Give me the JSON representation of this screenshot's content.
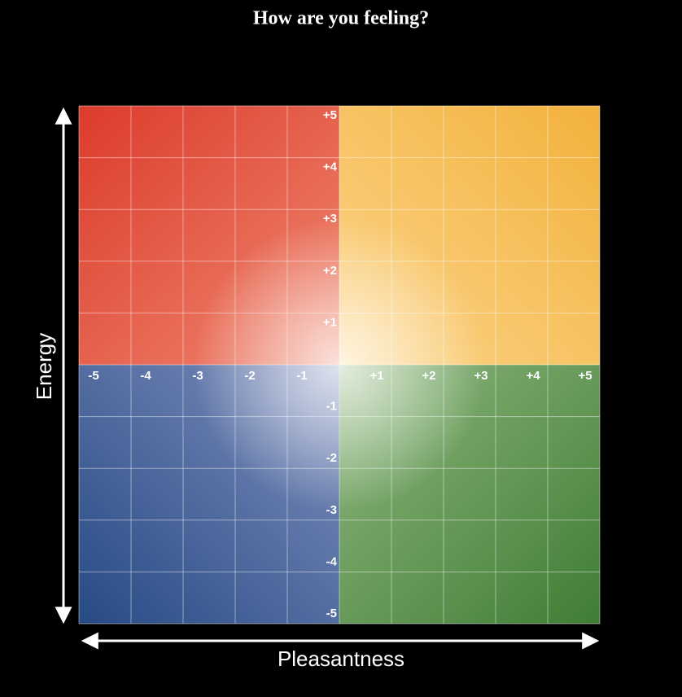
{
  "title": "How are you feeling?",
  "x_axis": {
    "label": "Pleasantness",
    "ticks": [
      "-5",
      "-4",
      "-3",
      "-2",
      "-1",
      "+1",
      "+2",
      "+3",
      "+4",
      "+5"
    ]
  },
  "y_axis": {
    "label": "Energy",
    "ticks": [
      "+5",
      "+4",
      "+3",
      "+2",
      "+1",
      "-1",
      "-2",
      "-3",
      "-4",
      "-5"
    ]
  }
}
